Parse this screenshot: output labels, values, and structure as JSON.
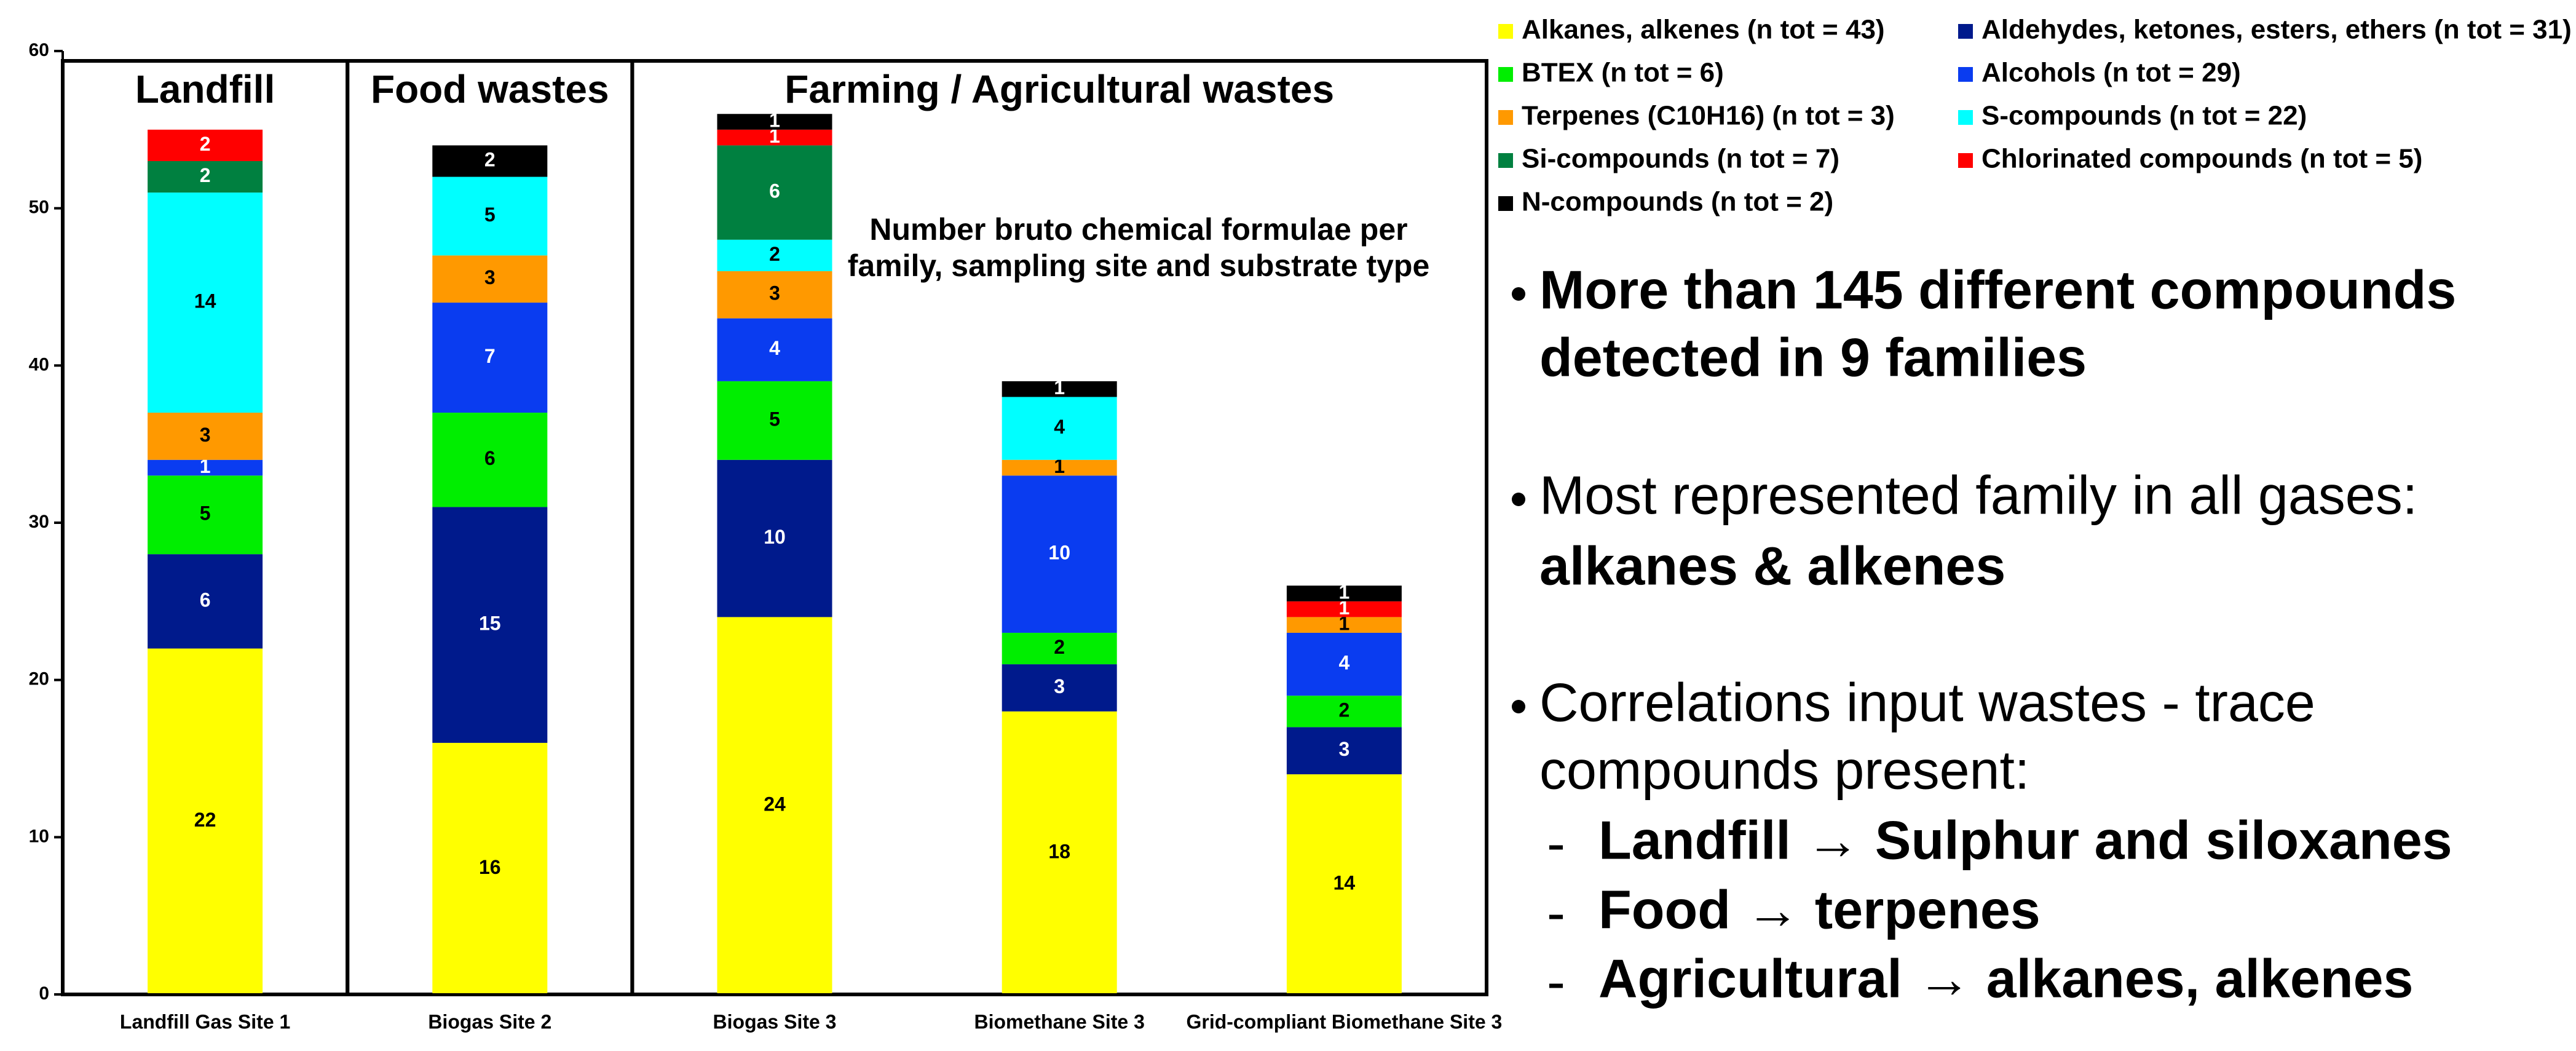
{
  "chart_data": {
    "type": "stacked_bar",
    "categories": [
      "Landfill Gas Site 1",
      "Biogas Site 2",
      "Biogas Site 3",
      "Biomethane Site 3",
      "Grid-compliant Biomethane Site 3"
    ],
    "group_labels": [
      "Landfill",
      "Food wastes",
      "Farming / Agricultural wastes"
    ],
    "annotation": [
      "Number bruto chemical formulae per",
      "family, sampling site and substrate type"
    ],
    "series": [
      {
        "name": "Alkanes, alkenes (n tot = 43)",
        "color": "#ffff00",
        "values": [
          22,
          16,
          24,
          18,
          14
        ]
      },
      {
        "name": "Aldehydes, ketones, esters, ethers  (n tot = 31)",
        "color": "#001a8c",
        "values": [
          6,
          15,
          10,
          3,
          3
        ]
      },
      {
        "name": "BTEX (n tot = 6)",
        "color": "#00ee00",
        "values": [
          5,
          6,
          5,
          2,
          2
        ]
      },
      {
        "name": "Alcohols  (n tot = 29)",
        "color": "#0a3cf0",
        "values": [
          1,
          7,
          4,
          10,
          4
        ]
      },
      {
        "name": "Terpenes (C10H16)  (n tot = 3)",
        "color": "#ff9900",
        "values": [
          3,
          3,
          3,
          1,
          1
        ]
      },
      {
        "name": "S-compounds (n tot = 22)",
        "color": "#00ffff",
        "values": [
          14,
          5,
          2,
          4,
          null
        ]
      },
      {
        "name": "Si-compounds (n tot = 7)",
        "color": "#008040",
        "values": [
          2,
          null,
          6,
          null,
          null
        ]
      },
      {
        "name": "Chlorinated compounds  (n tot = 5)",
        "color": "#ff0000",
        "values": [
          2,
          null,
          1,
          null,
          1
        ]
      },
      {
        "name": "N-compounds  (n tot = 2)",
        "color": "#000000",
        "values": [
          null,
          2,
          1,
          1,
          1
        ]
      }
    ],
    "ylim": [
      0,
      60
    ],
    "yticks": [
      0,
      10,
      20,
      30,
      40,
      50,
      60
    ]
  },
  "bullets": [
    {
      "lines": [
        "More than 145 different compounds",
        "detected in 9 families"
      ]
    },
    {
      "lines": [
        "Most represented family in all gases:"
      ],
      "bold": "alkanes & alkenes"
    },
    {
      "lines": [
        "Correlations input wastes - trace",
        "compounds present:"
      ],
      "items": [
        "Landfill → Sulphur and siloxanes",
        "Food → terpenes",
        "Agricultural → alkanes, alkenes"
      ]
    }
  ]
}
